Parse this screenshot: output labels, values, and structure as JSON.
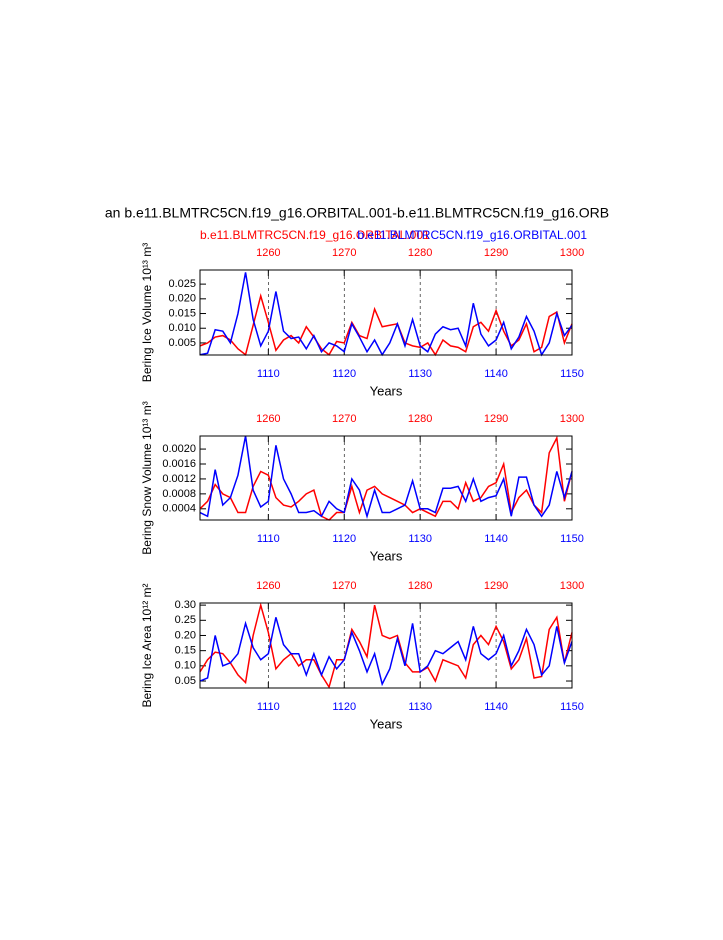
{
  "chart_data": [
    {
      "type": "line",
      "title": "an b.e11.BLMTRC5CN.f19_g16.ORBITAL.001-b.e11.BLMTRC5CN.f19_g16.ORB",
      "y_label": "Bering Ice Volume 10¹³ m³",
      "x_label": "Years",
      "grid": true,
      "xlim": [
        1101,
        1150
      ],
      "xticks": [
        1110,
        1120,
        1130,
        1140,
        1150
      ],
      "x2lim": [
        1251,
        1300
      ],
      "x2ticks": [
        1260,
        1270,
        1280,
        1290,
        1300
      ],
      "ylim": [
        0.0009,
        0.0298
      ],
      "yticks": [
        {
          "value": 0.005,
          "label": "0.005"
        },
        {
          "value": 0.01,
          "label": "0.010"
        },
        0.015,
        {
          "value": 0.02,
          "label": "0.020"
        },
        0.025
      ],
      "x": [
        1101,
        1102,
        1103,
        1104,
        1105,
        1106,
        1107,
        1108,
        1109,
        1110,
        1111,
        1112,
        1113,
        1114,
        1115,
        1116,
        1117,
        1118,
        1119,
        1120,
        1121,
        1122,
        1123,
        1124,
        1125,
        1126,
        1127,
        1128,
        1129,
        1130,
        1131,
        1132,
        1133,
        1134,
        1135,
        1136,
        1137,
        1138,
        1139,
        1140,
        1141,
        1142,
        1143,
        1144,
        1145,
        1146,
        1147,
        1148,
        1149,
        1150
      ],
      "x2": [
        1251,
        1252,
        1253,
        1254,
        1255,
        1256,
        1257,
        1258,
        1259,
        1260,
        1261,
        1262,
        1263,
        1264,
        1265,
        1266,
        1267,
        1268,
        1269,
        1270,
        1271,
        1272,
        1273,
        1274,
        1275,
        1276,
        1277,
        1278,
        1279,
        1280,
        1281,
        1282,
        1283,
        1284,
        1285,
        1286,
        1287,
        1288,
        1289,
        1290,
        1291,
        1292,
        1293,
        1294,
        1295,
        1296,
        1297,
        1298,
        1299,
        1300
      ],
      "series": [
        {
          "name": "b.e11.BLMTRC5CN.f19_g16.ORBITAL.001",
          "color": "#ff0000",
          "axis": "x2",
          "values": [
            0.004,
            0.005,
            0.007,
            0.0075,
            0.006,
            0.003,
            0.001,
            0.011,
            0.021,
            0.012,
            0.0025,
            0.006,
            0.0075,
            0.005,
            0.0105,
            0.007,
            0.003,
            0.001,
            0.0055,
            0.005,
            0.012,
            0.0075,
            0.0065,
            0.0165,
            0.0105,
            0.011,
            0.0115,
            0.005,
            0.004,
            0.0035,
            0.005,
            0.001,
            0.006,
            0.004,
            0.0035,
            0.002,
            0.0105,
            0.012,
            0.009,
            0.016,
            0.009,
            0.004,
            0.006,
            0.0115,
            0.002,
            0.0035,
            0.014,
            0.0155,
            0.005,
            0.0115
          ]
        },
        {
          "name": "b.e11.BLMTRC5CN.f19_g16.ORBITAL.001",
          "color": "#0000ff",
          "values": [
            0.001,
            0.0015,
            0.0095,
            0.009,
            0.005,
            0.015,
            0.029,
            0.013,
            0.004,
            0.009,
            0.0225,
            0.009,
            0.0065,
            0.007,
            0.003,
            0.0075,
            0.002,
            0.005,
            0.004,
            0.002,
            0.0115,
            0.007,
            0.002,
            0.006,
            0.001,
            0.005,
            0.0115,
            0.004,
            0.013,
            0.004,
            0.002,
            0.008,
            0.0105,
            0.0095,
            0.01,
            0.004,
            0.0185,
            0.008,
            0.004,
            0.006,
            0.012,
            0.003,
            0.007,
            0.014,
            0.009,
            0.001,
            0.005,
            0.015,
            0.0075,
            0.011
          ]
        }
      ]
    },
    {
      "type": "line",
      "y_label": "Bering Snow Volume 10¹³ m³",
      "x_label": "Years",
      "grid": true,
      "xlim": [
        1101,
        1150
      ],
      "xticks": [
        1110,
        1120,
        1130,
        1140,
        1150
      ],
      "x2lim": [
        1251,
        1300
      ],
      "x2ticks": [
        1260,
        1270,
        1280,
        1290,
        1300
      ],
      "ylim": [
        0.0001,
        0.00235
      ],
      "yticks": [
        0.0004,
        0.0008,
        0.0012,
        0.0016,
        {
          "value": 0.002,
          "label": "0.0020"
        }
      ],
      "x": [
        1101,
        1102,
        1103,
        1104,
        1105,
        1106,
        1107,
        1108,
        1109,
        1110,
        1111,
        1112,
        1113,
        1114,
        1115,
        1116,
        1117,
        1118,
        1119,
        1120,
        1121,
        1122,
        1123,
        1124,
        1125,
        1126,
        1127,
        1128,
        1129,
        1130,
        1131,
        1132,
        1133,
        1134,
        1135,
        1136,
        1137,
        1138,
        1139,
        1140,
        1141,
        1142,
        1143,
        1144,
        1145,
        1146,
        1147,
        1148,
        1149,
        1150
      ],
      "x2": [
        1251,
        1252,
        1253,
        1254,
        1255,
        1256,
        1257,
        1258,
        1259,
        1260,
        1261,
        1262,
        1263,
        1264,
        1265,
        1266,
        1267,
        1268,
        1269,
        1270,
        1271,
        1272,
        1273,
        1274,
        1275,
        1276,
        1277,
        1278,
        1279,
        1280,
        1281,
        1282,
        1283,
        1284,
        1285,
        1286,
        1287,
        1288,
        1289,
        1290,
        1291,
        1292,
        1293,
        1294,
        1295,
        1296,
        1297,
        1298,
        1299,
        1300
      ],
      "series": [
        {
          "color": "#ff0000",
          "axis": "x2",
          "values": [
            0.0004,
            0.0006,
            0.00105,
            0.0008,
            0.0007,
            0.0003,
            0.0003,
            0.001,
            0.0014,
            0.0013,
            0.0007,
            0.0005,
            0.00045,
            0.0006,
            0.0008,
            0.0009,
            0.0002,
            0.0001,
            0.0003,
            0.0003,
            0.001,
            0.0003,
            0.0009,
            0.001,
            0.0008,
            0.0007,
            0.0006,
            0.0005,
            0.0003,
            0.0004,
            0.0003,
            0.0002,
            0.0006,
            0.0006,
            0.0004,
            0.0011,
            0.0006,
            0.0007,
            0.001,
            0.0011,
            0.0016,
            0.0003,
            0.0007,
            0.0009,
            0.0005,
            0.0003,
            0.0019,
            0.0023,
            0.0006,
            0.0014
          ]
        },
        {
          "color": "#0000ff",
          "values": [
            0.0003,
            0.0002,
            0.00145,
            0.0005,
            0.0007,
            0.0013,
            0.00235,
            0.0009,
            0.00045,
            0.0006,
            0.0021,
            0.0012,
            0.0008,
            0.0003,
            0.0003,
            0.00035,
            0.0002,
            0.0006,
            0.0004,
            0.0003,
            0.0012,
            0.0009,
            0.0002,
            0.0009,
            0.0003,
            0.0003,
            0.0004,
            0.0005,
            0.00115,
            0.0004,
            0.0004,
            0.0003,
            0.00095,
            0.00095,
            0.001,
            0.0006,
            0.0012,
            0.0006,
            0.0007,
            0.00075,
            0.0012,
            0.0002,
            0.00125,
            0.00125,
            0.0005,
            0.0002,
            0.0005,
            0.0014,
            0.0007,
            0.0014
          ]
        }
      ]
    },
    {
      "type": "line",
      "y_label": "Bering Ice Area 10¹² m²",
      "x_label": "Years",
      "grid": true,
      "xlim": [
        1101,
        1150
      ],
      "xticks": [
        1110,
        1120,
        1130,
        1140,
        1150
      ],
      "x2lim": [
        1251,
        1300
      ],
      "x2ticks": [
        1260,
        1270,
        1280,
        1290,
        1300
      ],
      "ylim": [
        0.027,
        0.307
      ],
      "yticks": [
        0.05,
        {
          "value": 0.1,
          "label": "0.10"
        },
        0.15,
        {
          "value": 0.2,
          "label": "0.20"
        },
        0.25,
        {
          "value": 0.3,
          "label": "0.30"
        }
      ],
      "x": [
        1101,
        1102,
        1103,
        1104,
        1105,
        1106,
        1107,
        1108,
        1109,
        1110,
        1111,
        1112,
        1113,
        1114,
        1115,
        1116,
        1117,
        1118,
        1119,
        1120,
        1121,
        1122,
        1123,
        1124,
        1125,
        1126,
        1127,
        1128,
        1129,
        1130,
        1131,
        1132,
        1133,
        1134,
        1135,
        1136,
        1137,
        1138,
        1139,
        1140,
        1141,
        1142,
        1143,
        1144,
        1145,
        1146,
        1147,
        1148,
        1149,
        1150
      ],
      "x2": [
        1251,
        1252,
        1253,
        1254,
        1255,
        1256,
        1257,
        1258,
        1259,
        1260,
        1261,
        1262,
        1263,
        1264,
        1265,
        1266,
        1267,
        1268,
        1269,
        1270,
        1271,
        1272,
        1273,
        1274,
        1275,
        1276,
        1277,
        1278,
        1279,
        1280,
        1281,
        1282,
        1283,
        1284,
        1285,
        1286,
        1287,
        1288,
        1289,
        1290,
        1291,
        1292,
        1293,
        1294,
        1295,
        1296,
        1297,
        1298,
        1299,
        1300
      ],
      "series": [
        {
          "color": "#ff0000",
          "axis": "x2",
          "values": [
            0.08,
            0.12,
            0.145,
            0.14,
            0.11,
            0.07,
            0.045,
            0.2,
            0.3,
            0.21,
            0.09,
            0.12,
            0.14,
            0.1,
            0.12,
            0.12,
            0.07,
            0.03,
            0.12,
            0.12,
            0.22,
            0.18,
            0.13,
            0.3,
            0.2,
            0.19,
            0.2,
            0.11,
            0.08,
            0.08,
            0.095,
            0.05,
            0.12,
            0.11,
            0.1,
            0.06,
            0.17,
            0.2,
            0.17,
            0.23,
            0.18,
            0.09,
            0.12,
            0.19,
            0.06,
            0.065,
            0.22,
            0.26,
            0.11,
            0.21
          ]
        },
        {
          "color": "#0000ff",
          "values": [
            0.05,
            0.06,
            0.2,
            0.1,
            0.11,
            0.14,
            0.24,
            0.16,
            0.12,
            0.14,
            0.26,
            0.17,
            0.14,
            0.14,
            0.07,
            0.14,
            0.07,
            0.13,
            0.09,
            0.12,
            0.21,
            0.15,
            0.08,
            0.14,
            0.04,
            0.09,
            0.19,
            0.1,
            0.24,
            0.08,
            0.1,
            0.15,
            0.14,
            0.16,
            0.18,
            0.12,
            0.23,
            0.14,
            0.12,
            0.14,
            0.2,
            0.1,
            0.15,
            0.22,
            0.17,
            0.07,
            0.1,
            0.23,
            0.11,
            0.18
          ]
        }
      ]
    }
  ]
}
